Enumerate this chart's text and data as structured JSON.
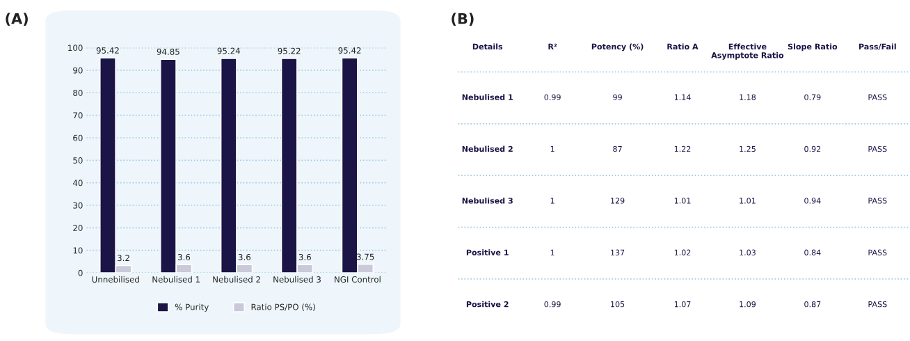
{
  "chart_data": [
    {
      "type": "bar",
      "title": "(A)",
      "categories": [
        "Unnebilised",
        "Nebulised 1",
        "Nebulised 2",
        "Nebulised 3",
        "NGI Control"
      ],
      "series": [
        {
          "name": "% Purity",
          "color": "#1b1446",
          "values": [
            95.42,
            94.85,
            95.24,
            95.22,
            95.42
          ]
        },
        {
          "name": "Ratio PS/PO (%)",
          "color": "#c9c9d9",
          "values": [
            3.2,
            3.6,
            3.6,
            3.6,
            3.75
          ]
        }
      ],
      "ylim": [
        0,
        100
      ],
      "yticks": [
        0,
        10,
        20,
        30,
        40,
        50,
        60,
        70,
        80,
        90,
        100
      ],
      "grid": "y",
      "legend": "bottom",
      "data_labels": true
    },
    {
      "type": "other",
      "title": "(B)",
      "categories": [
        "Details",
        "R²",
        "Potency (%)",
        "Ratio A",
        "Effective Asymptote Ratio",
        "Slope Ratio",
        "Pass/Fail"
      ],
      "y_categories": [
        "Nebulised 1",
        "Nebulised 2",
        "Nebulised 3",
        "Positive 1",
        "Positive 2"
      ],
      "cell_labels": [
        [
          "0.99",
          "99",
          "1.14",
          "1.18",
          "0.79",
          "PASS"
        ],
        [
          "1",
          "87",
          "1.22",
          "1.25",
          "0.92",
          "PASS"
        ],
        [
          "1",
          "129",
          "1.01",
          "1.01",
          "0.94",
          "PASS"
        ],
        [
          "1",
          "137",
          "1.02",
          "1.03",
          "0.84",
          "PASS"
        ],
        [
          "0.99",
          "105",
          "1.07",
          "1.09",
          "0.87",
          "PASS"
        ]
      ]
    }
  ]
}
